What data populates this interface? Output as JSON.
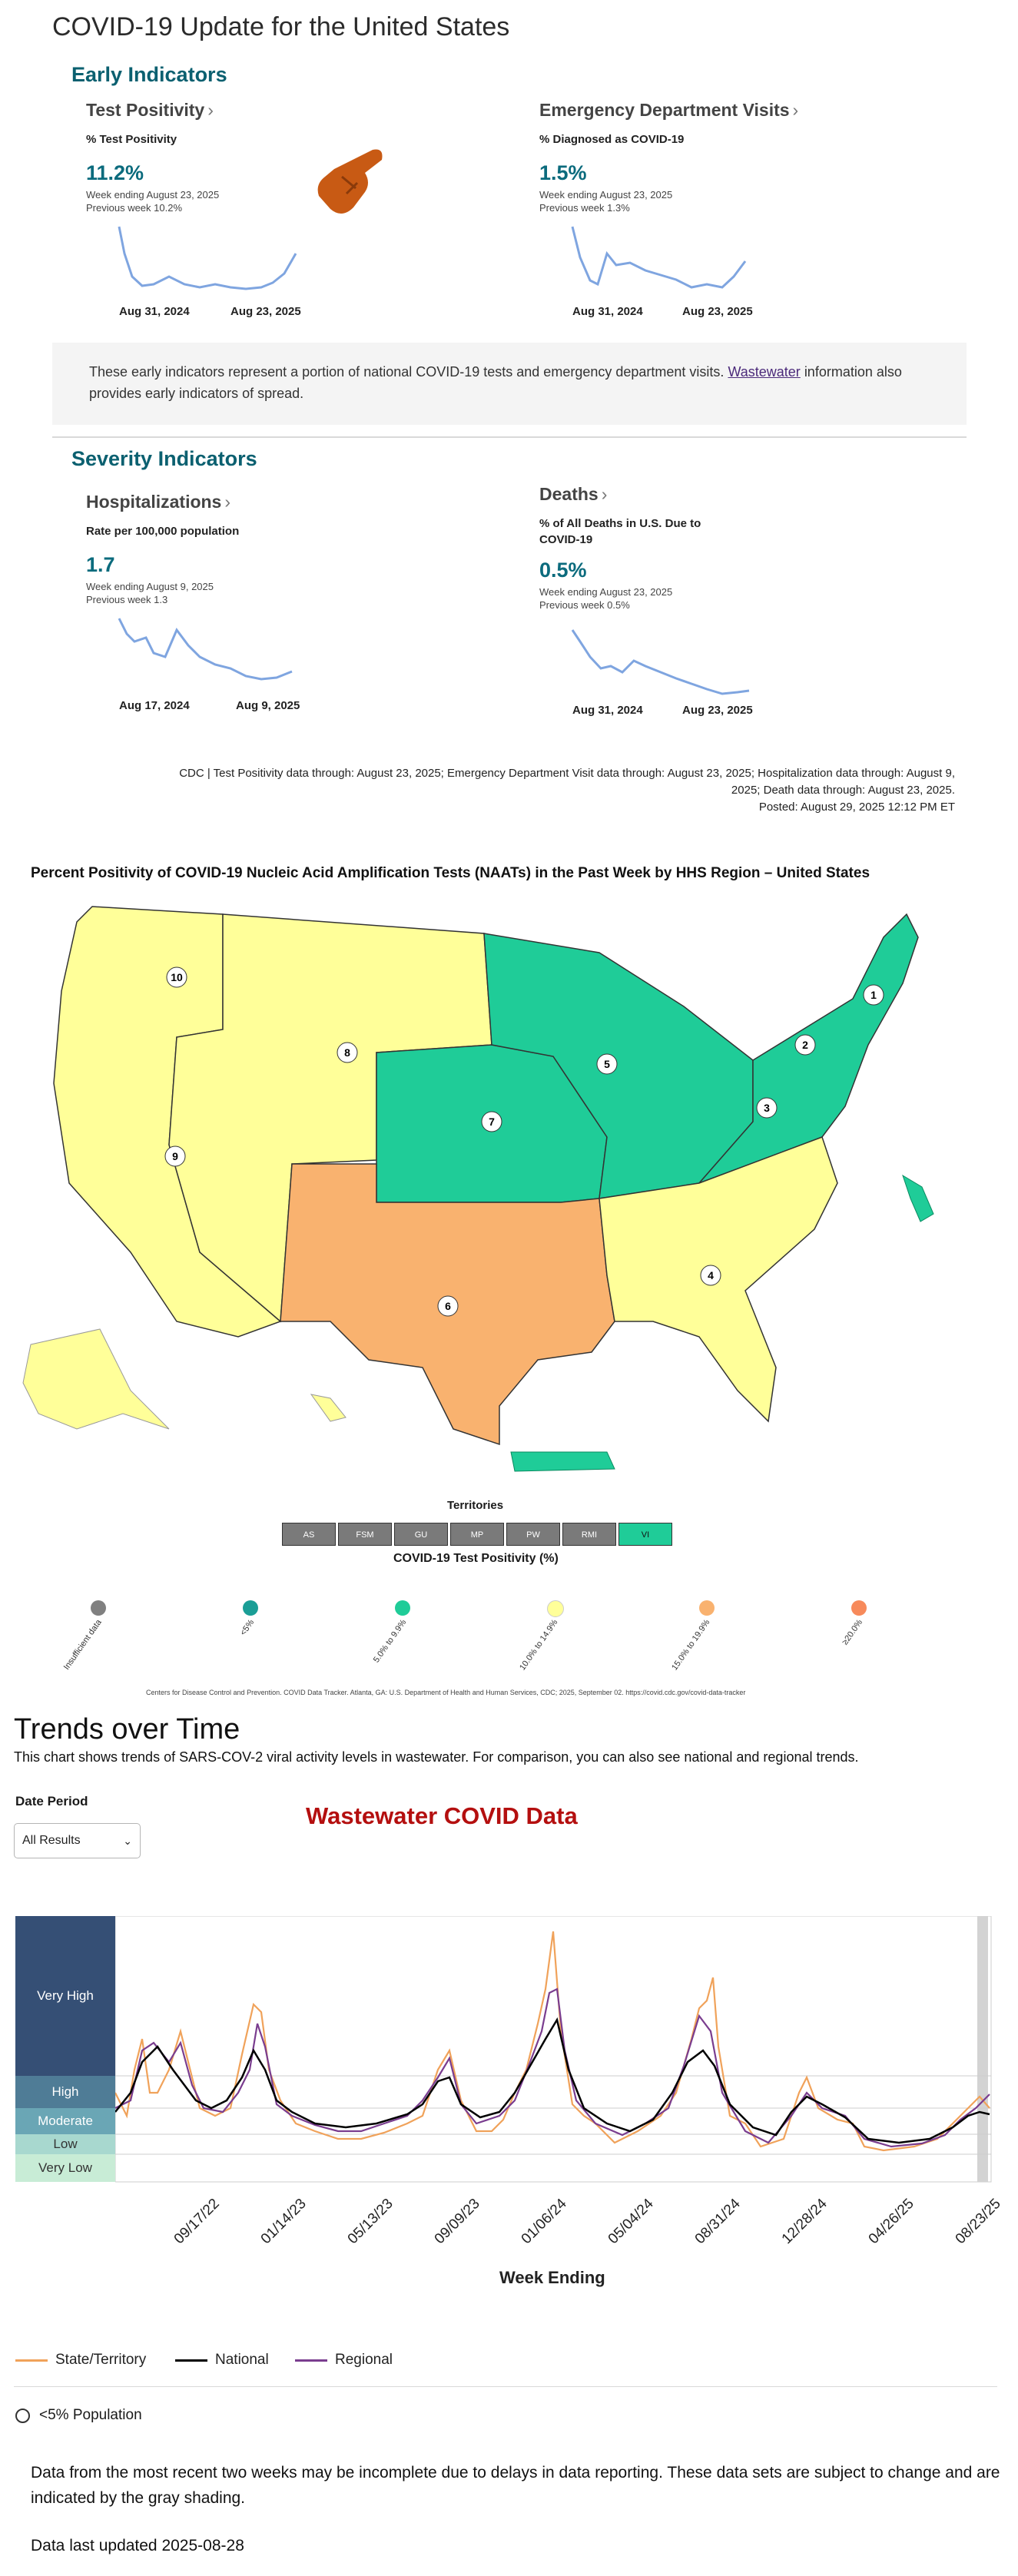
{
  "page": {
    "title": "COVID-19 Update for the United States"
  },
  "early": {
    "heading": "Early Indicators",
    "test_positivity": {
      "title": "Test Positivity",
      "subtitle": "% Test Positivity",
      "value": "11.2%",
      "week": "Week ending August 23, 2025",
      "previous": "Previous week 10.2%",
      "x_start": "Aug 31, 2024",
      "x_end": "Aug 23, 2025"
    },
    "ed_visits": {
      "title": "Emergency Department Visits",
      "subtitle": "% Diagnosed as COVID-19",
      "value": "1.5%",
      "week": "Week ending August 23, 2025",
      "previous": "Previous week 1.3%",
      "x_start": "Aug 31, 2024",
      "x_end": "Aug 23, 2025"
    },
    "info_text": "These early indicators represent a portion of national COVID-19 tests and emergency department visits.",
    "info_link": "Wastewater",
    "info_text2": "information also provides early indicators of spread."
  },
  "severity": {
    "heading": "Severity Indicators",
    "hospitalizations": {
      "title": "Hospitalizations",
      "subtitle": "Rate per 100,000 population",
      "value": "1.7",
      "week": "Week ending August 9, 2025",
      "previous": "Previous week 1.3",
      "x_start": "Aug 17, 2024",
      "x_end": "Aug 9, 2025"
    },
    "deaths": {
      "title": "Deaths",
      "subtitle": "% of All Deaths in U.S. Due to COVID-19",
      "value": "0.5%",
      "week": "Week ending August 23, 2025",
      "previous": "Previous week 0.5%",
      "x_start": "Aug 31, 2024",
      "x_end": "Aug 23, 2025"
    }
  },
  "footnote": {
    "line1": "CDC | Test Positivity data through: August 23, 2025; Emergency Department Visit data through: August 23, 2025; Hospitalization data through: August 9,",
    "line2": "2025; Death data through: August 23, 2025.",
    "line3": "Posted: August 29, 2025 12:12 PM ET"
  },
  "map": {
    "title": "Percent Positivity of COVID-19 Nucleic Acid Amplification Tests (NAATs) in the Past Week by HHS Region – United States",
    "regions": [
      "1",
      "2",
      "3",
      "4",
      "5",
      "6",
      "7",
      "8",
      "9",
      "10"
    ],
    "territories_title": "Territories",
    "territories": [
      "AS",
      "FSM",
      "GU",
      "MP",
      "PW",
      "RMI",
      "VI"
    ],
    "legend_title": "COVID-19 Test Positivity (%)",
    "legend": [
      {
        "label": "Insufficient data",
        "color": "#808080"
      },
      {
        "label": "<5%",
        "color": "#1a9e96"
      },
      {
        "label": "5.0% to 9.9%",
        "color": "#1fcc98"
      },
      {
        "label": "10.0% to 14.9%",
        "color": "#ffff99"
      },
      {
        "label": "15.0% to 19.9%",
        "color": "#f9b26f"
      },
      {
        "label": "≥20.0%",
        "color": "#f78a5b"
      }
    ],
    "source": "Centers for Disease Control and Prevention. COVID Data Tracker. Atlanta, GA: U.S. Department of Health and Human Services, CDC; 2025, September 02. https://covid.cdc.gov/covid-data-tracker"
  },
  "trends": {
    "heading": "Trends over Time",
    "description": "This chart shows trends of SARS-COV-2 viral activity levels in wastewater. For comparison, you can also see national and regional trends.",
    "date_period_label": "Date Period",
    "date_period_value": "All Results",
    "chart_title": "Wastewater COVID Data",
    "levels": [
      "Very High",
      "High",
      "Moderate",
      "Low",
      "Very Low"
    ],
    "x_ticks": [
      "09/17/22",
      "01/14/23",
      "05/13/23",
      "09/09/23",
      "01/06/24",
      "05/04/24",
      "08/31/24",
      "12/28/24",
      "04/26/25",
      "08/23/25"
    ],
    "x_axis_title": "Week Ending",
    "legend": [
      {
        "label": "State/Territory",
        "color": "#f0a25a"
      },
      {
        "label": "National",
        "color": "#000000"
      },
      {
        "label": "Regional",
        "color": "#7a3d8f"
      }
    ],
    "radio_label": "<5% Population",
    "note": "Data from the most recent two weeks may be incomplete due to delays in data reporting. These data sets are subject to change and are indicated by the gray shading.",
    "updated": "Data last updated 2025-08-28"
  },
  "colors": {
    "teal_accent": "#0b6b7d",
    "spark_line": "#7fa5e0",
    "red_title": "#b40f0f",
    "level_very_high": "#354f75",
    "level_high": "#4f7c96",
    "level_moderate": "#6aa6b5",
    "level_low": "#a8d8cf",
    "level_very_low": "#c8ecd6"
  }
}
